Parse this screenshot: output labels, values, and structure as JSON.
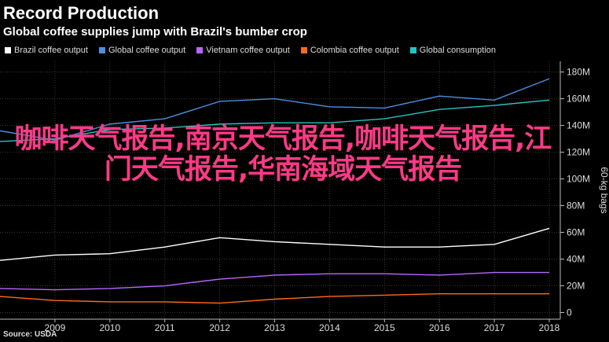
{
  "header": {
    "title": "Record Production",
    "subtitle": "Global coffee supplies jump with Brazil's bumber crop"
  },
  "source": "Source: USDA",
  "overlay_text": "咖啡天气报告,南京天气报告,咖啡天气报告,江门天气报告,华南海域天气报告",
  "chart_data": {
    "type": "line",
    "title": "Record Production",
    "subtitle": "Global coffee supplies jump with Brazil's bumber crop",
    "ylabel": "60-kg bags",
    "xlabel": "",
    "x": [
      2008,
      2009,
      2010,
      2011,
      2012,
      2013,
      2014,
      2015,
      2016,
      2017,
      2018
    ],
    "xticks": [
      "2009",
      "2010",
      "2011",
      "2012",
      "2013",
      "2014",
      "2015",
      "2016",
      "2017",
      "2018"
    ],
    "yticks": [
      "0",
      "20M",
      "40M",
      "60M",
      "80M",
      "100M",
      "120M",
      "140M",
      "160M",
      "180M"
    ],
    "ylim": [
      -5,
      188
    ],
    "xlim": [
      2008.0,
      2018.2
    ],
    "grid": true,
    "legend_position": "top-left",
    "series": [
      {
        "name": "Brazil coffee output",
        "color": "#ffffff",
        "values": [
          39,
          43,
          44,
          49,
          56,
          53,
          51,
          49,
          49,
          51,
          63
        ]
      },
      {
        "name": "Global coffee output",
        "color": "#4a90e2",
        "values": [
          136,
          129,
          141,
          145,
          158,
          160,
          154,
          153,
          162,
          159,
          175
        ]
      },
      {
        "name": "Vietnam coffee output",
        "color": "#b967ff",
        "values": [
          18,
          17,
          18,
          20,
          25,
          28,
          29,
          29,
          28,
          30,
          30
        ]
      },
      {
        "name": "Colombia coffee output",
        "color": "#ff6a1a",
        "values": [
          12,
          9,
          8,
          8,
          7,
          10,
          12,
          13,
          14,
          14,
          14
        ]
      },
      {
        "name": "Global consumption",
        "color": "#24c4c4",
        "values": [
          128,
          130,
          137,
          138,
          141,
          142,
          142,
          145,
          152,
          155,
          159
        ]
      }
    ]
  }
}
